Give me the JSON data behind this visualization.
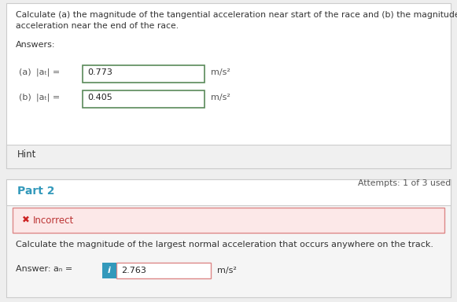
{
  "bg_color": "#eeeeee",
  "card1_bg": "#ffffff",
  "card1_border": "#cccccc",
  "card2_bg": "#f5f5f5",
  "card2_border": "#cccccc",
  "title_line1": "Calculate (a) the magnitude of the tangential acceleration near start of the race and (b) the magnitude of the tangential",
  "title_line2": "acceleration near the end of the race.",
  "title_fontsize": 7.8,
  "title_color": "#333333",
  "answers_label": "Answers:",
  "answers_fontsize": 8.0,
  "answers_color": "#333333",
  "row_a_label1": "(a)",
  "row_a_label2": "|aₜ| =",
  "row_a_value": "0.773",
  "row_a_unit": "m/s²",
  "row_a_box_color": "#5a8a5a",
  "row_b_label1": "(b)",
  "row_b_label2": "|aₜ| =",
  "row_b_value": "0.405",
  "row_b_unit": "m/s²",
  "row_b_box_color": "#5a8a5a",
  "row_fontsize": 8.0,
  "row_label_color": "#555555",
  "value_color": "#222222",
  "hint_text": "Hint",
  "hint_fontsize": 8.5,
  "hint_color": "#333333",
  "hint_bg": "#f0f0f0",
  "hint_border": "#cccccc",
  "attempts_text": "Attempts: 1 of 3 used",
  "attempts_fontsize": 7.8,
  "attempts_color": "#555555",
  "part2_label": "Part 2",
  "part2_fontsize": 10,
  "part2_color": "#3399bb",
  "incorrect_text": "Incorrect",
  "incorrect_cross": "✖",
  "incorrect_box_bg": "#fce8e8",
  "incorrect_box_border": "#dd8888",
  "incorrect_fontsize": 8.5,
  "incorrect_color": "#bb3333",
  "incorrect_cross_color": "#cc2222",
  "question2_text": "Calculate the magnitude of the largest normal acceleration that occurs anywhere on the track.",
  "question2_fontsize": 8.0,
  "question2_color": "#333333",
  "answer2_label": "Answer: aₙ =",
  "answer2_info": "i",
  "answer2_value": "2.763",
  "answer2_unit": "m/s²",
  "answer2_info_bg": "#3399bb",
  "answer2_info_color": "#ffffff",
  "answer2_box_border": "#dd8888",
  "answer2_fontsize": 8.0,
  "answer2_color": "#333333",
  "fig_w": 5.81,
  "fig_h": 3.84,
  "dpi": 100
}
